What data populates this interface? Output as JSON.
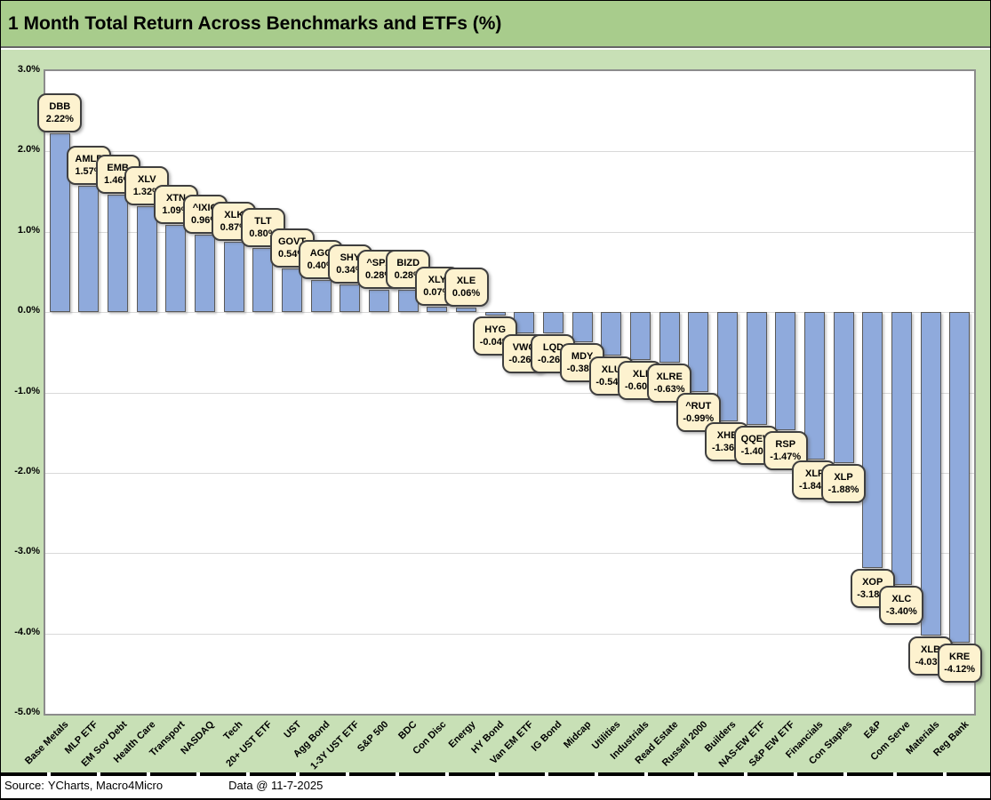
{
  "title_bar": {
    "title": "1 Month Total Return Across Benchmarks and ETFs (%)"
  },
  "footer": {
    "source_label": "Source:",
    "source_value": "YCharts, Macro4Micro",
    "data_stamp": "Data @ 11-7-2025"
  },
  "colors": {
    "title_bar_bg": "#A8CC8C",
    "chart_bg": "#C8E0B6",
    "plot_bg": "#FFFFFF",
    "plot_border": "#8C8C8C",
    "bar_fill": "#8FAADC",
    "bar_border": "#595959",
    "callout_fill": "#FDF2CF",
    "callout_border": "#3F3F3F",
    "gridline": "#D9D9D9"
  },
  "chart_data": {
    "type": "bar",
    "title": "1 Month Total Return Across Benchmarks and ETFs (%)",
    "xlabel": "",
    "ylabel": "",
    "ylim": [
      -5,
      3
    ],
    "ytick_step": 1,
    "ytick_labels": [
      "3.0%",
      "2.0%",
      "1.0%",
      "0.0%",
      "-1.0%",
      "-2.0%",
      "-3.0%",
      "-4.0%",
      "-5.0%"
    ],
    "grid": true,
    "legend": "none",
    "data_label_style": "rounded-callout-ticker-and-value",
    "categories": [
      "Base Metals",
      "MLP ETF",
      "EM Sov Debt",
      "Health Care",
      "Transport",
      "NASDAQ",
      "Tech",
      "20+ UST ETF",
      "UST",
      "Agg Bond",
      "1-3Y UST ETF",
      "S&P 500",
      "BDC",
      "Con Disc",
      "Energy",
      "HY Bond",
      "Van EM ETF",
      "IG Bond",
      "Midcap",
      "Utilities",
      "Industrials",
      "Read Estate",
      "Russell 2000",
      "Builders",
      "NAS-EW ETF",
      "S&P EW ETF",
      "Financials",
      "Con Staples",
      "E&P",
      "Com Serve",
      "Materials",
      "Reg Bank"
    ],
    "tickers": [
      "DBB",
      "AMLP",
      "EMB",
      "XLV",
      "XTN",
      "^IXIC",
      "XLK",
      "TLT",
      "GOVT",
      "AGG",
      "SHY",
      "^SPX",
      "BIZD",
      "XLY",
      "XLE",
      "HYG",
      "VWO",
      "LQD",
      "MDY",
      "XLU",
      "XLI",
      "XLRE",
      "^RUT",
      "XHB",
      "QQEW",
      "RSP",
      "XLF",
      "XLP",
      "XOP",
      "XLC",
      "XLB",
      "KRE"
    ],
    "values": [
      2.22,
      1.57,
      1.46,
      1.32,
      1.09,
      0.96,
      0.87,
      0.8,
      0.54,
      0.4,
      0.34,
      0.28,
      0.28,
      0.07,
      0.06,
      -0.04,
      -0.26,
      -0.26,
      -0.38,
      -0.54,
      -0.6,
      -0.63,
      -0.99,
      -1.36,
      -1.4,
      -1.47,
      -1.84,
      -1.88,
      -3.18,
      -3.4,
      -4.03,
      -4.12
    ],
    "value_label_format": "0.00%"
  }
}
